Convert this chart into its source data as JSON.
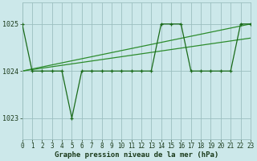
{
  "x_values": [
    0,
    1,
    2,
    3,
    4,
    5,
    6,
    7,
    8,
    9,
    10,
    11,
    12,
    13,
    14,
    15,
    16,
    17,
    18,
    19,
    20,
    21,
    22,
    23
  ],
  "y_main": [
    1025.0,
    1024.0,
    1024.0,
    1024.0,
    1024.0,
    1023.0,
    1024.0,
    1024.0,
    1024.0,
    1024.0,
    1024.0,
    1024.0,
    1024.0,
    1024.0,
    1025.0,
    1025.0,
    1025.0,
    1024.0,
    1024.0,
    1024.0,
    1024.0,
    1024.0,
    1025.0,
    1025.0
  ],
  "y_trend1_x": [
    0,
    23
  ],
  "y_trend1_y": [
    1024.0,
    1025.0
  ],
  "y_trend2_x": [
    0,
    23
  ],
  "y_trend2_y": [
    1024.0,
    1024.7
  ],
  "bg_color": "#cce8ea",
  "grid_color": "#9bbfbf",
  "line_color": "#1a6b1a",
  "trend_color": "#2d8c2d",
  "xlabel": "Graphe pression niveau de la mer (hPa)",
  "ylim": [
    1022.55,
    1025.45
  ],
  "xlim": [
    0,
    23
  ],
  "yticks": [
    1023,
    1024,
    1025
  ],
  "xticks": [
    0,
    1,
    2,
    3,
    4,
    5,
    6,
    7,
    8,
    9,
    10,
    11,
    12,
    13,
    14,
    15,
    16,
    17,
    18,
    19,
    20,
    21,
    22,
    23
  ],
  "tick_fontsize": 5.5,
  "label_fontsize": 6.5
}
